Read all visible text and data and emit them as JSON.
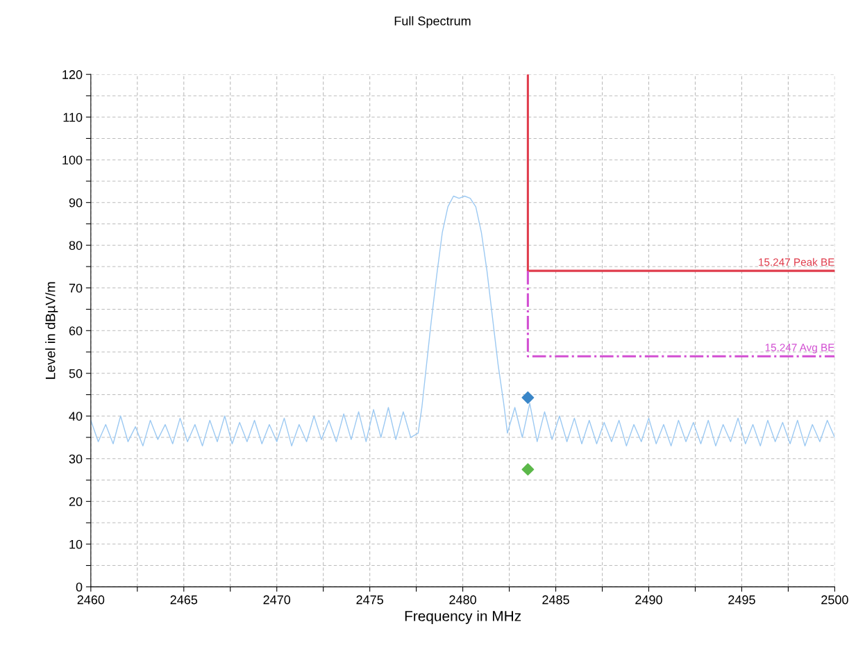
{
  "chart_data": {
    "type": "line",
    "title": "Full Spectrum",
    "xlabel": "Frequency in MHz",
    "ylabel": "Level in dBµV/m",
    "xlim": [
      2460,
      2500
    ],
    "ylim": [
      0,
      120
    ],
    "xticks": [
      2460,
      {
        "value": 2462.5,
        "label": null
      },
      2465,
      {
        "value": 2467.5,
        "label": null
      },
      2470,
      {
        "value": 2472.5,
        "label": null
      },
      2475,
      {
        "value": 2477.5,
        "label": null
      },
      2480,
      {
        "value": 2482.5,
        "label": null
      },
      2485,
      {
        "value": 2487.5,
        "label": null
      },
      2490,
      {
        "value": 2492.5,
        "label": null
      },
      2495,
      {
        "value": 2497.5,
        "label": null
      },
      2500
    ],
    "yticks": [
      0,
      {
        "value": 5,
        "label": null
      },
      10,
      {
        "value": 15,
        "label": null
      },
      20,
      {
        "value": 25,
        "label": null
      },
      30,
      {
        "value": 35,
        "label": null
      },
      40,
      {
        "value": 45,
        "label": null
      },
      50,
      {
        "value": 55,
        "label": null
      },
      60,
      {
        "value": 65,
        "label": null
      },
      70,
      {
        "value": 75,
        "label": null
      },
      80,
      {
        "value": 85,
        "label": null
      },
      90,
      {
        "value": 95,
        "label": null
      },
      100,
      {
        "value": 105,
        "label": null
      },
      110,
      {
        "value": 115,
        "label": null
      },
      120
    ],
    "grid": true,
    "legend": false,
    "series": [
      {
        "color": "#9cc9f2",
        "line_style": "solid",
        "marker": "none",
        "x": [
          2460,
          2460.4,
          2460.8,
          2461.2,
          2461.6,
          2462,
          2462.4,
          2462.8,
          2463.2,
          2463.6,
          2464,
          2464.4,
          2464.8,
          2465.2,
          2465.6,
          2466,
          2466.4,
          2466.8,
          2467.2,
          2467.6,
          2468,
          2468.4,
          2468.8,
          2469.2,
          2469.6,
          2470,
          2470.4,
          2470.8,
          2471.2,
          2471.6,
          2472,
          2472.4,
          2472.8,
          2473.2,
          2473.6,
          2474,
          2474.4,
          2474.8,
          2475.2,
          2475.6,
          2476,
          2476.4,
          2476.8,
          2477.2,
          2477.6,
          2477.8,
          2478,
          2478.3,
          2478.6,
          2478.9,
          2479.2,
          2479.5,
          2479.8,
          2480.1,
          2480.4,
          2480.7,
          2481,
          2481.3,
          2481.6,
          2481.9,
          2482.2,
          2482.4,
          2482.8,
          2483.2,
          2483.6,
          2484,
          2484.4,
          2484.8,
          2485.2,
          2485.6,
          2486,
          2486.4,
          2486.8,
          2487.2,
          2487.6,
          2488,
          2488.4,
          2488.8,
          2489.2,
          2489.6,
          2490,
          2490.4,
          2490.8,
          2491.2,
          2491.6,
          2492,
          2492.4,
          2492.8,
          2493.2,
          2493.6,
          2494,
          2494.4,
          2494.8,
          2495.2,
          2495.6,
          2496,
          2496.4,
          2496.8,
          2497.2,
          2497.6,
          2498,
          2498.4,
          2498.8,
          2499.2,
          2499.6,
          2500
        ],
        "values": [
          39,
          34,
          38,
          33.5,
          40,
          34,
          37.5,
          33,
          39,
          34.5,
          38,
          33.5,
          39.5,
          34,
          38,
          33,
          39,
          34,
          40,
          33.5,
          38.5,
          34,
          39,
          33.5,
          38,
          34,
          39.5,
          33,
          38,
          34,
          40,
          34.5,
          39,
          34,
          40.5,
          34.5,
          41,
          34,
          41.5,
          35,
          42,
          34.5,
          41,
          35,
          36,
          42,
          50,
          62,
          73,
          83,
          89,
          91.5,
          91,
          91.5,
          91,
          89,
          83,
          74,
          63,
          52,
          43,
          36,
          42,
          35,
          43,
          34,
          41,
          34.5,
          40,
          34,
          39.5,
          33.5,
          39,
          33.5,
          38.5,
          34,
          39,
          33,
          38,
          34,
          39.5,
          33.5,
          38,
          33,
          39,
          34,
          38.5,
          33.5,
          39,
          33,
          38,
          34,
          39.5,
          33.5,
          38,
          33,
          39,
          34,
          38.5,
          33.5,
          39,
          33,
          38,
          34,
          39,
          35
        ]
      },
      {
        "type": "line",
        "name": "15.247 Peak BE",
        "color": "#e03c4c",
        "line_style": "solid",
        "marker": "none",
        "x": [
          2483.5,
          2483.5,
          2500
        ],
        "values": [
          120,
          74,
          74
        ]
      },
      {
        "type": "line",
        "name": "15.247 Avg BE",
        "color": "#d24fd2",
        "line_style": "dashdot",
        "marker": "none",
        "x": [
          2483.5,
          2483.5,
          2500
        ],
        "values": [
          74,
          54,
          54
        ]
      },
      {
        "type": "scatter",
        "color": "#3a86c8",
        "marker": "diamond",
        "x": [
          2483.5
        ],
        "values": [
          44.3
        ]
      },
      {
        "type": "scatter",
        "color": "#5cb84a",
        "marker": "diamond",
        "x": [
          2483.5
        ],
        "values": [
          27.5
        ]
      }
    ]
  }
}
